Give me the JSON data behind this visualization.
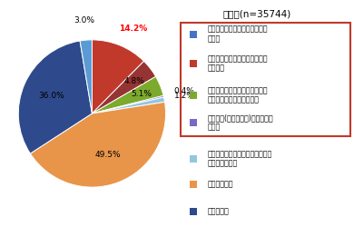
{
  "title": "雇用者(n=35744)",
  "slices": [
    {
      "label": "社員全員を対象にテレワーク等\nが規定",
      "value": 14.2,
      "color": "#C0392B",
      "pct": "14.2%",
      "pct_red": true
    },
    {
      "label": "一部の社員を対象にテレワーク\n等が規定",
      "value": 4.8,
      "color": "#963333",
      "pct": "4.8%",
      "pct_red": false
    },
    {
      "label": "制度はないが会社や上司などが\nテレワーク等を認めている",
      "value": 5.1,
      "color": "#7CAA2D",
      "pct": "5.1%",
      "pct_red": false
    },
    {
      "label": "試行実験(トライアル)をおこなっ\nている",
      "value": 0.4,
      "color": "#7B68C8",
      "pct": "0.4%",
      "pct_red": false
    },
    {
      "label": "上記には該当しないがテレワーク\n等を認めている",
      "value": 1.2,
      "color": "#92C6E0",
      "pct": "1.2%",
      "pct_red": false
    },
    {
      "label": "認めていない",
      "value": 49.5,
      "color": "#E8954A",
      "pct": "49.5%",
      "pct_red": false
    },
    {
      "label": "わからない",
      "value": 36.0,
      "color": "#2E4A8C",
      "pct": "36.0%",
      "pct_red": false
    },
    {
      "label": "",
      "value": 3.0,
      "color": "#5B9BD5",
      "pct": "3.0%",
      "pct_red": false
    }
  ],
  "background_color": "#ffffff",
  "legend_boxed_count": 4,
  "legend_box_color": "#C0392B",
  "pie_label_fontsize": 6.5,
  "title_fontsize": 7.5,
  "legend_fontsize": 5.8
}
